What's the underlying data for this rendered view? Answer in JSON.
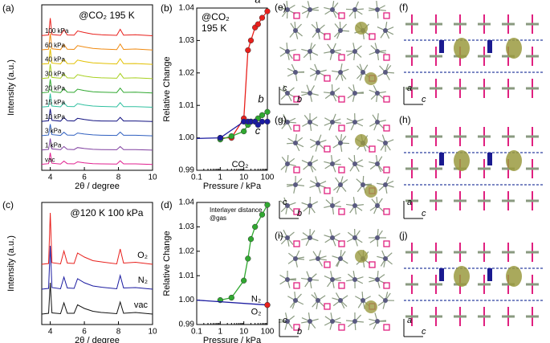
{
  "chart_data": [
    {
      "panel": "(a)",
      "type": "line",
      "annotation": "@CO₂ 195 K",
      "xlabel": "2θ / degree",
      "ylabel": "Intensity (a.u.)",
      "xlim": [
        3.5,
        10
      ],
      "xticks": [
        4,
        6,
        8,
        10
      ],
      "x": [
        3.5,
        3.9,
        4.0,
        4.1,
        4.6,
        4.8,
        5.0,
        5.4,
        5.6,
        6.0,
        6.5,
        7.0,
        7.9,
        8.1,
        8.3,
        9.0,
        10
      ],
      "series": [
        {
          "name": "100 kPa",
          "color": "#e8201c",
          "values": [
            0.3,
            0.6,
            9,
            0.8,
            0.4,
            3.2,
            0.6,
            0.5,
            2.6,
            1.8,
            1,
            0.7,
            0.4,
            3.4,
            0.5,
            0.7,
            0.2
          ]
        },
        {
          "name": "60 kPa",
          "color": "#f08a10",
          "values": [
            0.3,
            0.6,
            8.5,
            0.8,
            0.4,
            3,
            0.6,
            0.5,
            2.4,
            1.7,
            1,
            0.7,
            0.4,
            3.2,
            0.5,
            0.7,
            0.2
          ]
        },
        {
          "name": "40 kPa",
          "color": "#e2c000",
          "values": [
            0.3,
            0.6,
            8,
            0.8,
            0.4,
            2.8,
            0.6,
            0.5,
            2.3,
            1.6,
            0.9,
            0.7,
            0.4,
            3,
            0.5,
            0.6,
            0.2
          ]
        },
        {
          "name": "30 kPa",
          "color": "#a8d020",
          "values": [
            0.3,
            0.6,
            7.5,
            0.8,
            0.4,
            2.6,
            0.6,
            0.5,
            2.2,
            1.5,
            0.9,
            0.6,
            0.4,
            2.8,
            0.5,
            0.6,
            0.2
          ]
        },
        {
          "name": "20 kPa",
          "color": "#30a830",
          "values": [
            0.3,
            0.6,
            7,
            0.8,
            0.4,
            2.5,
            0.6,
            0.5,
            2.1,
            1.4,
            0.8,
            0.6,
            0.4,
            2.6,
            0.5,
            0.6,
            0.2
          ]
        },
        {
          "name": "15 kPa",
          "color": "#30c0a0",
          "values": [
            0.3,
            0.6,
            7,
            0.8,
            0.4,
            2.4,
            0.6,
            0.5,
            2,
            1.3,
            0.8,
            0.6,
            0.4,
            2.5,
            0.5,
            0.5,
            0.2
          ]
        },
        {
          "name": "10 kPa",
          "color": "#101080",
          "values": [
            0.3,
            0.6,
            6.5,
            0.8,
            0.4,
            2.2,
            0.6,
            0.5,
            1.8,
            1.2,
            0.7,
            0.5,
            0.4,
            2.3,
            0.5,
            0.5,
            0.2
          ]
        },
        {
          "name": "3 kPa",
          "color": "#3060c0",
          "values": [
            0.3,
            0.6,
            6,
            0.8,
            0.4,
            2,
            0.6,
            0.5,
            1.6,
            1.1,
            0.7,
            0.5,
            0.4,
            2.1,
            0.5,
            0.5,
            0.2
          ]
        },
        {
          "name": "1 kPa",
          "color": "#8040a0",
          "values": [
            0.3,
            0.6,
            6,
            0.8,
            0.4,
            2,
            0.6,
            0.5,
            1.5,
            1,
            0.6,
            0.5,
            0.4,
            2,
            0.5,
            0.5,
            0.2
          ]
        },
        {
          "name": "vac",
          "color": "#e0208f",
          "values": [
            0.3,
            0.6,
            6,
            0.8,
            0.4,
            1.9,
            0.6,
            0.5,
            1.5,
            1,
            0.6,
            0.5,
            0.4,
            2,
            0.5,
            0.5,
            0.2
          ]
        }
      ]
    },
    {
      "panel": "(b)",
      "type": "line",
      "annotation": [
        "@CO₂",
        "195 K"
      ],
      "xlabel": "Pressure / kPa",
      "ylabel": "Relative Change",
      "xscale": "log",
      "xlim": [
        0.1,
        100
      ],
      "xticks": [
        0.1,
        1,
        10,
        100
      ],
      "ylim": [
        0.99,
        1.04
      ],
      "yticks": [
        0.99,
        {
          "value": 1,
          "label": "1.00"
        },
        1.01,
        1.02,
        1.03,
        1.04
      ],
      "series": [
        {
          "name": "a",
          "color": "#e8201c",
          "x": [
            1,
            3,
            10,
            15,
            20,
            30,
            40,
            60,
            100
          ],
          "values": [
            1.0,
            1.0,
            1.006,
            1.027,
            1.03,
            1.034,
            1.035,
            1.037,
            1.039
          ]
        },
        {
          "name": "b",
          "color": "#30a830",
          "x": [
            1,
            3,
            10,
            15,
            20,
            30,
            40,
            60,
            100
          ],
          "values": [
            0.9995,
            1.0005,
            1.002,
            1.004,
            1.005,
            1.005,
            1.006,
            1.007,
            1.008
          ]
        },
        {
          "name": "c",
          "color": "#1a1aa0",
          "x": [
            0.1,
            1,
            10,
            15,
            20,
            30,
            40,
            60,
            100
          ],
          "values": [
            0.9998,
            1.0,
            1.005,
            1.005,
            1.005,
            1.005,
            1.004,
            1.005,
            1.005
          ]
        }
      ]
    },
    {
      "panel": "(c)",
      "type": "line",
      "annotation": "@120 K 100 kPa",
      "xlabel": "2θ / degree",
      "ylabel": "Intensity (a.u.)",
      "xlim": [
        3.5,
        10
      ],
      "xticks": [
        4,
        6,
        8,
        10
      ],
      "x": [
        3.5,
        3.9,
        4.0,
        4.1,
        4.6,
        4.8,
        5.0,
        5.4,
        5.6,
        6.0,
        6.5,
        7.0,
        7.9,
        8.1,
        8.3,
        9.0,
        10
      ],
      "series": [
        {
          "name": "O₂",
          "color": "#e8201c",
          "values": [
            0.2,
            0.4,
            13,
            0.6,
            0.3,
            3.5,
            0.5,
            0.4,
            3,
            2,
            1.1,
            0.8,
            0.3,
            4,
            0.5,
            0.7,
            0.2
          ]
        },
        {
          "name": "N₂",
          "color": "#1a1aa0",
          "values": [
            0.2,
            0.4,
            11,
            0.6,
            0.3,
            3.2,
            0.5,
            0.4,
            2.8,
            1.8,
            1,
            0.7,
            0.3,
            3.6,
            0.5,
            0.6,
            0.2
          ]
        },
        {
          "name": "vac",
          "color": "#111111",
          "values": [
            0.2,
            0.4,
            8,
            0.5,
            0.3,
            3,
            0.4,
            0.4,
            2.5,
            1.6,
            0.9,
            0.6,
            0.3,
            3.2,
            0.4,
            0.6,
            0.2
          ]
        }
      ]
    },
    {
      "panel": "(d)",
      "type": "line",
      "annotation": [
        "Interlayer distance",
        "@gas"
      ],
      "xlabel": "Pressure / kPa",
      "ylabel": "Relative Change",
      "xscale": "log",
      "xlim": [
        0.1,
        100
      ],
      "xticks": [
        0.1,
        1,
        10,
        100
      ],
      "ylim": [
        0.99,
        1.04
      ],
      "yticks": [
        0.99,
        {
          "value": 1,
          "label": "1.00"
        },
        1.01,
        1.02,
        1.03,
        1.04
      ],
      "series": [
        {
          "name": "CO₂",
          "color": "#30a830",
          "x": [
            1,
            3,
            10,
            15,
            20,
            30,
            60,
            100
          ],
          "values": [
            1.0,
            1.001,
            1.008,
            1.017,
            1.025,
            1.03,
            1.035,
            1.039
          ]
        },
        {
          "name": "N₂",
          "color": "#1a1aa0",
          "x": [
            0.1,
            100
          ],
          "values": [
            1.0,
            0.998
          ]
        },
        {
          "name": "O₂",
          "color": "#e8201c",
          "x": [
            100
          ],
          "values": [
            0.998
          ]
        }
      ]
    }
  ],
  "structures": [
    {
      "label": "(e)",
      "axes": [
        "c",
        "b"
      ]
    },
    {
      "label": "(f)",
      "axes": [
        "a",
        "c"
      ]
    },
    {
      "label": "(g)",
      "axes": [
        "c",
        "b"
      ]
    },
    {
      "label": "(h)",
      "axes": [
        "a",
        "c"
      ]
    },
    {
      "label": "(i)",
      "axes": [
        "c",
        "b"
      ]
    },
    {
      "label": "(j)",
      "axes": [
        "a",
        "c"
      ]
    }
  ]
}
